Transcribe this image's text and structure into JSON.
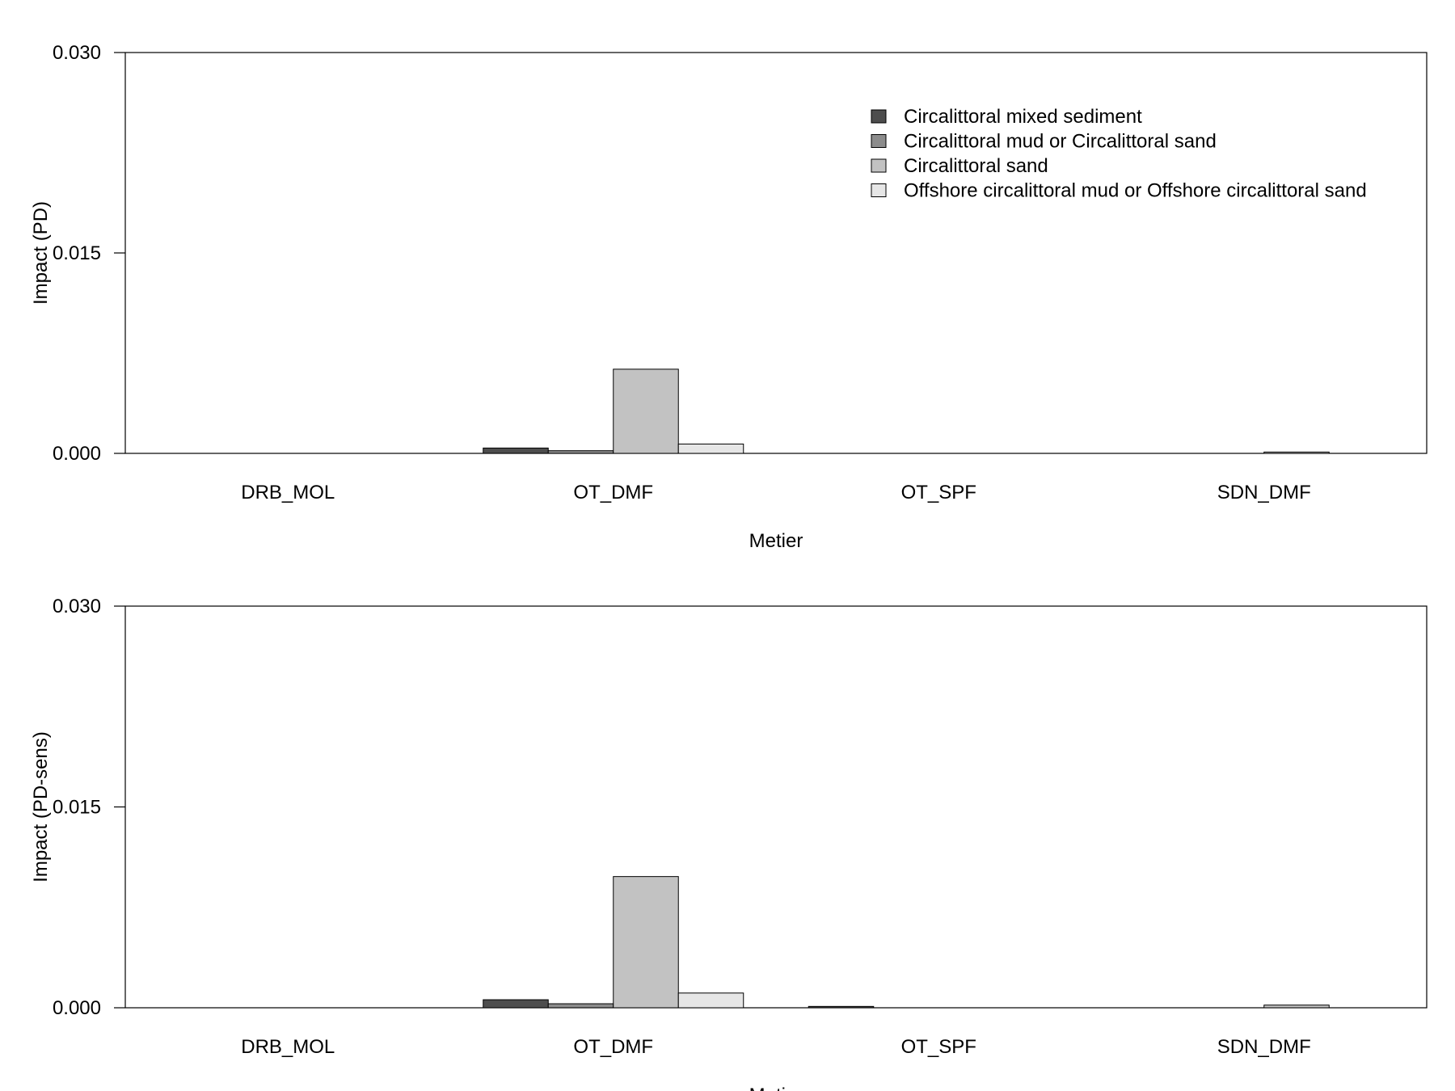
{
  "chart_data": [
    {
      "type": "bar",
      "title": "",
      "xlabel": "Metier",
      "ylabel": "Impact (PD)",
      "ylim": [
        0,
        0.03
      ],
      "yticks": [
        "0.000",
        "0.015",
        "0.030"
      ],
      "ytick_values": [
        0,
        0.015,
        0.03
      ],
      "grid": false,
      "legend_placement": "top-right",
      "categories": [
        "DRB_MOL",
        "OT_DMF",
        "OT_SPF",
        "SDN_DMF"
      ],
      "series": [
        {
          "name": "Circalittoral mixed sediment",
          "color": "#4d4d4d",
          "values": [
            0,
            0.0004,
            0,
            0
          ]
        },
        {
          "name": "Circalittoral mud or Circalittoral sand",
          "color": "#8c8c8c",
          "values": [
            0,
            0.0002,
            0,
            0
          ]
        },
        {
          "name": "Circalittoral sand",
          "color": "#c2c2c2",
          "values": [
            0,
            0.0063,
            0,
            0.0001
          ]
        },
        {
          "name": "Offshore circalittoral mud or Offshore circalittoral sand",
          "color": "#e6e6e6",
          "values": [
            0,
            0.0007,
            0,
            0
          ]
        }
      ]
    },
    {
      "type": "bar",
      "title": "",
      "xlabel": "Metier",
      "ylabel": "Impact (PD-sens)",
      "ylim": [
        0,
        0.03
      ],
      "yticks": [
        "0.000",
        "0.015",
        "0.030"
      ],
      "ytick_values": [
        0,
        0.015,
        0.03
      ],
      "grid": false,
      "categories": [
        "DRB_MOL",
        "OT_DMF",
        "OT_SPF",
        "SDN_DMF"
      ],
      "series": [
        {
          "name": "Circalittoral mixed sediment",
          "color": "#4d4d4d",
          "values": [
            0,
            0.0006,
            0.0001,
            0
          ]
        },
        {
          "name": "Circalittoral mud or Circalittoral sand",
          "color": "#8c8c8c",
          "values": [
            0,
            0.0003,
            0,
            0
          ]
        },
        {
          "name": "Circalittoral sand",
          "color": "#c2c2c2",
          "values": [
            0,
            0.0098,
            0,
            0.0002
          ]
        },
        {
          "name": "Offshore circalittoral mud or Offshore circalittoral sand",
          "color": "#e6e6e6",
          "values": [
            0,
            0.0011,
            0,
            0
          ]
        }
      ]
    }
  ]
}
